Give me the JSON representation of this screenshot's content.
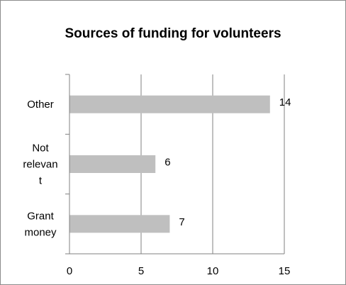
{
  "chart_data": {
    "type": "bar",
    "orientation": "horizontal",
    "title": "Sources of funding for volunteers",
    "categories": [
      {
        "id": "other",
        "lines": [
          "Other"
        ]
      },
      {
        "id": "not-relevant",
        "lines": [
          "Not",
          "relevan",
          "t"
        ]
      },
      {
        "id": "grant-money",
        "lines": [
          "Grant",
          "money"
        ]
      }
    ],
    "values": [
      14,
      6,
      7
    ],
    "data_labels": [
      "14",
      "6",
      "7"
    ],
    "xlim": [
      0,
      15
    ],
    "xticks": [
      0,
      5,
      10,
      15
    ],
    "xtick_labels": [
      "0",
      "5",
      "10",
      "15"
    ],
    "grid": "vertical",
    "legend": "none",
    "bar_color": "#bfbfbf",
    "grid_color": "#808080"
  }
}
